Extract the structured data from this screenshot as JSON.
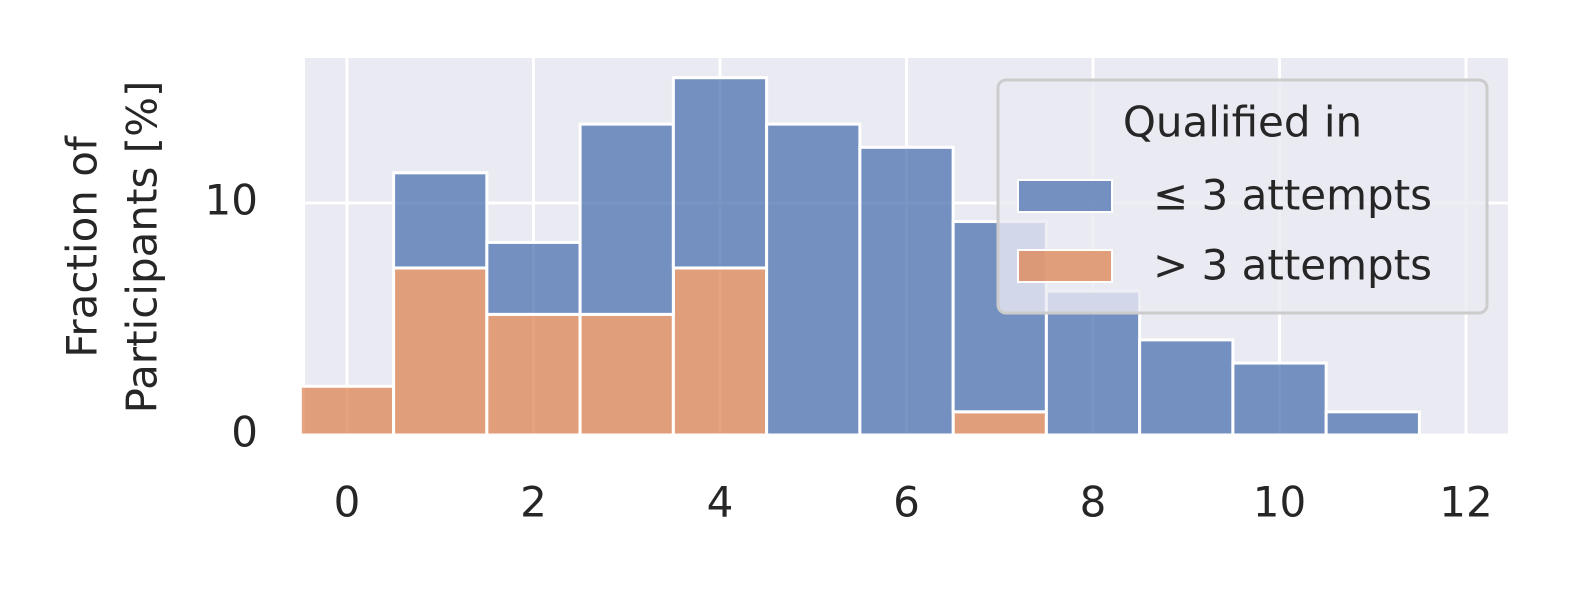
{
  "chart_data": {
    "type": "histogram",
    "ylabel": [
      "Fraction of",
      "Participants [%]"
    ],
    "bins": [
      -0.5,
      0.5,
      1.5,
      2.5,
      3.5,
      4.5,
      5.5,
      6.5,
      7.5,
      8.5,
      9.5,
      10.5,
      11.5
    ],
    "series": [
      {
        "name": "≤ 3 attempts",
        "color": "#4c72b0",
        "values": [
          0,
          4.1,
          3.1,
          8.2,
          8.2,
          13.4,
          12.4,
          8.2,
          6.2,
          4.1,
          3.1,
          1.0
        ]
      },
      {
        "name": "> 3 attempts",
        "color": "#dd8452",
        "values": [
          2.1,
          7.2,
          5.2,
          5.2,
          7.2,
          0,
          0,
          1.0,
          0,
          0,
          0,
          0
        ]
      }
    ],
    "xlim": [
      -0.45,
      12.45
    ],
    "xticks": [
      0,
      2,
      4,
      6,
      8,
      10,
      12
    ],
    "ylim": [
      0,
      16.25
    ],
    "yticks": [
      0,
      10
    ],
    "grid": true,
    "legend_title": "Qualified in",
    "legend_position": "upper right"
  }
}
